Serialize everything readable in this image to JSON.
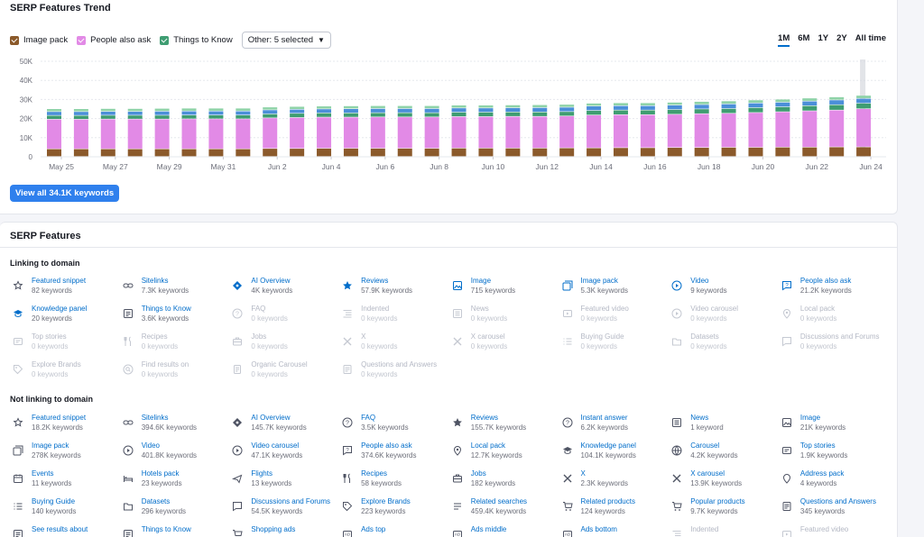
{
  "trend": {
    "title": "SERP Features Trend",
    "legend": [
      {
        "label": "Image pack",
        "color": "#8b5a2b"
      },
      {
        "label": "People also ask",
        "color": "#e28ae6"
      },
      {
        "label": "Things to Know",
        "color": "#3f9d72"
      }
    ],
    "other_select": "Other: 5 selected",
    "ranges": [
      "1M",
      "6M",
      "1Y",
      "2Y",
      "All time"
    ],
    "active_range": "1M",
    "view_all": "View all 34.1K keywords"
  },
  "chart_data": {
    "type": "bar",
    "stacked": true,
    "categories": [
      "May 25",
      "May 26",
      "May 27",
      "May 28",
      "May 29",
      "May 30",
      "May 31",
      "Jun 1",
      "Jun 2",
      "Jun 3",
      "Jun 4",
      "Jun 5",
      "Jun 6",
      "Jun 7",
      "Jun 8",
      "Jun 9",
      "Jun 10",
      "Jun 11",
      "Jun 12",
      "Jun 13",
      "Jun 14",
      "Jun 15",
      "Jun 16",
      "Jun 17",
      "Jun 18",
      "Jun 19",
      "Jun 20",
      "Jun 21",
      "Jun 22",
      "Jun 23",
      "Jun 24"
    ],
    "x_tick_labels": [
      "May 25",
      "May 27",
      "May 29",
      "May 31",
      "Jun 2",
      "Jun 4",
      "Jun 6",
      "Jun 8",
      "Jun 10",
      "Jun 12",
      "Jun 14",
      "Jun 16",
      "Jun 18",
      "Jun 20",
      "Jun 22",
      "Jun 24"
    ],
    "y_ticks": [
      "0",
      "10K",
      "20K",
      "30K",
      "40K",
      "50K"
    ],
    "ylim": [
      0,
      50000
    ],
    "series": [
      {
        "name": "Image pack",
        "color": "#8b5a2b",
        "values": [
          4000,
          4000,
          4000,
          4000,
          4000,
          4000,
          4000,
          4000,
          4200,
          4200,
          4300,
          4300,
          4300,
          4300,
          4300,
          4400,
          4400,
          4400,
          4400,
          4500,
          4500,
          4600,
          4600,
          4700,
          4700,
          4800,
          4800,
          4900,
          4900,
          5000,
          5000
        ]
      },
      {
        "name": "People also ask",
        "color": "#e28ae6",
        "values": [
          15500,
          15500,
          15600,
          15600,
          15600,
          15700,
          15700,
          15700,
          16000,
          16200,
          16300,
          16300,
          16400,
          16400,
          16400,
          16500,
          16500,
          16600,
          16600,
          16700,
          17200,
          17300,
          17300,
          17400,
          17700,
          17800,
          18200,
          18500,
          19000,
          19300,
          20000
        ]
      },
      {
        "name": "Things to Know",
        "color": "#3f9d72",
        "values": [
          2000,
          2000,
          2000,
          2000,
          2000,
          2000,
          2000,
          2000,
          2100,
          2200,
          2200,
          2200,
          2200,
          2200,
          2200,
          2300,
          2300,
          2300,
          2300,
          2300,
          2400,
          2400,
          2400,
          2500,
          2500,
          2500,
          2600,
          2600,
          2700,
          2800,
          2900
        ]
      },
      {
        "name": "Other",
        "color": "#4b8fd9",
        "values": [
          2000,
          2000,
          2000,
          2000,
          2100,
          2100,
          2100,
          2100,
          2100,
          2100,
          2100,
          2200,
          2200,
          2200,
          2200,
          2200,
          2200,
          2200,
          2300,
          2300,
          2300,
          2300,
          2300,
          2300,
          2300,
          2400,
          2400,
          2400,
          2400,
          2500,
          2500
        ]
      },
      {
        "name": "Other 2",
        "color": "#8fd3a8",
        "values": [
          1500,
          1500,
          1500,
          1500,
          1500,
          1500,
          1500,
          1500,
          1500,
          1500,
          1500,
          1500,
          1500,
          1500,
          1500,
          1500,
          1500,
          1500,
          1500,
          1500,
          1500,
          1500,
          1500,
          1500,
          1600,
          1600,
          1600,
          1600,
          1600,
          1600,
          1600
        ]
      }
    ],
    "highlight_index": 30
  },
  "features": {
    "title": "SERP Features",
    "linking_heading": "Linking to domain",
    "not_linking_heading": "Not linking to domain",
    "linking": [
      {
        "name": "Featured snippet",
        "kw": "82 keywords",
        "icon": "crown-icon",
        "enabled": true
      },
      {
        "name": "Sitelinks",
        "kw": "7.3K keywords",
        "icon": "link-icon",
        "enabled": true
      },
      {
        "name": "AI Overview",
        "kw": "4K keywords",
        "icon": "ai-diamond-icon",
        "enabled": true,
        "highlight": true
      },
      {
        "name": "Reviews",
        "kw": "57.9K keywords",
        "icon": "star-icon",
        "enabled": true,
        "highlight": true
      },
      {
        "name": "Image",
        "kw": "715 keywords",
        "icon": "image-icon",
        "enabled": true,
        "highlight": true
      },
      {
        "name": "Image pack",
        "kw": "5.3K keywords",
        "icon": "image-pack-icon",
        "enabled": true,
        "highlight": true
      },
      {
        "name": "Video",
        "kw": "9 keywords",
        "icon": "play-icon",
        "enabled": true,
        "highlight": true
      },
      {
        "name": "People also ask",
        "kw": "21.2K keywords",
        "icon": "question-bubble-icon",
        "enabled": true,
        "highlight": true
      },
      {
        "name": "Knowledge panel",
        "kw": "20 keywords",
        "icon": "graduation-cap-icon",
        "enabled": true,
        "highlight": true
      },
      {
        "name": "Things to Know",
        "kw": "3.6K keywords",
        "icon": "list-icon",
        "enabled": true
      },
      {
        "name": "FAQ",
        "kw": "0 keywords",
        "icon": "question-circle-icon",
        "enabled": false
      },
      {
        "name": "Indented",
        "kw": "0 keywords",
        "icon": "indent-icon",
        "enabled": false
      },
      {
        "name": "News",
        "kw": "0 keywords",
        "icon": "news-icon",
        "enabled": false
      },
      {
        "name": "Featured video",
        "kw": "0 keywords",
        "icon": "featured-video-icon",
        "enabled": false
      },
      {
        "name": "Video carousel",
        "kw": "0 keywords",
        "icon": "video-carousel-icon",
        "enabled": false
      },
      {
        "name": "Local pack",
        "kw": "0 keywords",
        "icon": "location-pin-icon",
        "enabled": false
      },
      {
        "name": "Top stories",
        "kw": "0 keywords",
        "icon": "top-stories-icon",
        "enabled": false
      },
      {
        "name": "Recipes",
        "kw": "0 keywords",
        "icon": "fork-knife-icon",
        "enabled": false
      },
      {
        "name": "Jobs",
        "kw": "0 keywords",
        "icon": "briefcase-icon",
        "enabled": false
      },
      {
        "name": "X",
        "kw": "0 keywords",
        "icon": "x-logo-icon",
        "enabled": false
      },
      {
        "name": "X carousel",
        "kw": "0 keywords",
        "icon": "x-carousel-icon",
        "enabled": false
      },
      {
        "name": "Buying Guide",
        "kw": "0 keywords",
        "icon": "checklist-icon",
        "enabled": false
      },
      {
        "name": "Datasets",
        "kw": "0 keywords",
        "icon": "folder-icon",
        "enabled": false
      },
      {
        "name": "Discussions and Forums",
        "kw": "0 keywords",
        "icon": "chat-icon",
        "enabled": false
      },
      {
        "name": "Explore Brands",
        "kw": "0 keywords",
        "icon": "tag-icon",
        "enabled": false
      },
      {
        "name": "Find results on",
        "kw": "0 keywords",
        "icon": "search-circle-icon",
        "enabled": false
      },
      {
        "name": "Organic Carousel",
        "kw": "0 keywords",
        "icon": "document-icon",
        "enabled": false
      },
      {
        "name": "Questions and Answers",
        "kw": "0 keywords",
        "icon": "qa-icon",
        "enabled": false
      }
    ],
    "not_linking": [
      {
        "name": "Featured snippet",
        "kw": "18.2K keywords",
        "icon": "crown-icon",
        "enabled": true
      },
      {
        "name": "Sitelinks",
        "kw": "394.6K keywords",
        "icon": "link-icon",
        "enabled": true
      },
      {
        "name": "AI Overview",
        "kw": "145.7K keywords",
        "icon": "ai-diamond-icon",
        "enabled": true
      },
      {
        "name": "FAQ",
        "kw": "3.5K keywords",
        "icon": "question-circle-icon",
        "enabled": true
      },
      {
        "name": "Reviews",
        "kw": "155.7K keywords",
        "icon": "star-icon",
        "enabled": true
      },
      {
        "name": "Instant answer",
        "kw": "6.2K keywords",
        "icon": "question-circle-icon",
        "enabled": true
      },
      {
        "name": "News",
        "kw": "1 keyword",
        "icon": "news-icon",
        "enabled": true
      },
      {
        "name": "Image",
        "kw": "21K keywords",
        "icon": "image-icon",
        "enabled": true
      },
      {
        "name": "Image pack",
        "kw": "278K keywords",
        "icon": "image-pack-icon",
        "enabled": true
      },
      {
        "name": "Video",
        "kw": "401.8K keywords",
        "icon": "play-icon",
        "enabled": true
      },
      {
        "name": "Video carousel",
        "kw": "47.1K keywords",
        "icon": "video-carousel-icon",
        "enabled": true
      },
      {
        "name": "People also ask",
        "kw": "374.6K keywords",
        "icon": "question-bubble-icon",
        "enabled": true
      },
      {
        "name": "Local pack",
        "kw": "12.7K keywords",
        "icon": "location-pin-icon",
        "enabled": true
      },
      {
        "name": "Knowledge panel",
        "kw": "104.1K keywords",
        "icon": "graduation-cap-icon",
        "enabled": true
      },
      {
        "name": "Carousel",
        "kw": "4.2K keywords",
        "icon": "carousel-icon",
        "enabled": true
      },
      {
        "name": "Top stories",
        "kw": "1.9K keywords",
        "icon": "top-stories-icon",
        "enabled": true
      },
      {
        "name": "Events",
        "kw": "11 keywords",
        "icon": "calendar-icon",
        "enabled": true
      },
      {
        "name": "Hotels pack",
        "kw": "23 keywords",
        "icon": "bed-icon",
        "enabled": true
      },
      {
        "name": "Flights",
        "kw": "13 keywords",
        "icon": "plane-icon",
        "enabled": true
      },
      {
        "name": "Recipes",
        "kw": "58 keywords",
        "icon": "fork-knife-icon",
        "enabled": true
      },
      {
        "name": "Jobs",
        "kw": "182 keywords",
        "icon": "briefcase-icon",
        "enabled": true
      },
      {
        "name": "X",
        "kw": "2.3K keywords",
        "icon": "x-logo-icon",
        "enabled": true
      },
      {
        "name": "X carousel",
        "kw": "13.9K keywords",
        "icon": "x-carousel-icon",
        "enabled": true
      },
      {
        "name": "Address pack",
        "kw": "4 keywords",
        "icon": "address-icon",
        "enabled": true
      },
      {
        "name": "Buying Guide",
        "kw": "140 keywords",
        "icon": "checklist-icon",
        "enabled": true
      },
      {
        "name": "Datasets",
        "kw": "296 keywords",
        "icon": "folder-icon",
        "enabled": true
      },
      {
        "name": "Discussions and Forums",
        "kw": "54.5K keywords",
        "icon": "chat-icon",
        "enabled": true
      },
      {
        "name": "Explore Brands",
        "kw": "223 keywords",
        "icon": "tag-icon",
        "enabled": true
      },
      {
        "name": "Related searches",
        "kw": "459.4K keywords",
        "icon": "related-search-icon",
        "enabled": true
      },
      {
        "name": "Related products",
        "kw": "124 keywords",
        "icon": "cart-icon",
        "enabled": true
      },
      {
        "name": "Popular products",
        "kw": "9.7K keywords",
        "icon": "cart-icon",
        "enabled": true
      },
      {
        "name": "Questions and Answers",
        "kw": "345 keywords",
        "icon": "qa-icon",
        "enabled": true
      },
      {
        "name": "See results about",
        "kw": "",
        "icon": "list-icon",
        "enabled": true
      },
      {
        "name": "Things to Know",
        "kw": "",
        "icon": "list-icon",
        "enabled": true
      },
      {
        "name": "Shopping ads",
        "kw": "",
        "icon": "cart-icon",
        "enabled": true
      },
      {
        "name": "Ads top",
        "kw": "",
        "icon": "ads-icon",
        "enabled": true
      },
      {
        "name": "Ads middle",
        "kw": "",
        "icon": "ads-icon",
        "enabled": true
      },
      {
        "name": "Ads bottom",
        "kw": "",
        "icon": "ads-icon",
        "enabled": true
      },
      {
        "name": "Indented",
        "kw": "",
        "icon": "indent-icon",
        "enabled": false
      },
      {
        "name": "Featured video",
        "kw": "",
        "icon": "featured-video-icon",
        "enabled": false
      }
    ]
  }
}
